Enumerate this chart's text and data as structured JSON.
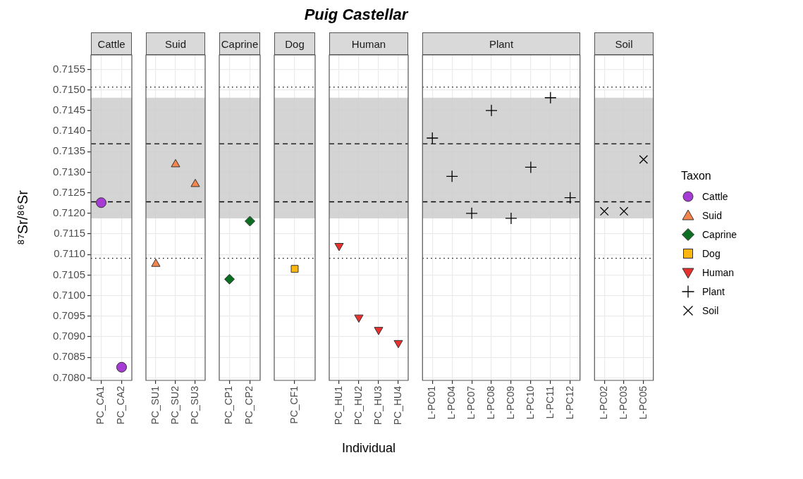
{
  "chart_data": [
    {
      "type": "scatter",
      "title": "Cattle",
      "annotations": [
        "Puig Castellar"
      ],
      "ylabel": "⁸⁷Sr/⁸⁶Sr",
      "categories": [
        "PC_CA1",
        "PC_CA2"
      ],
      "marker": "circle",
      "legend": "right",
      "grid": true,
      "series": [
        {
          "name": "Cattle",
          "color": "#a63bd6",
          "values": [
            0.71226,
            0.70826
          ]
        }
      ],
      "ylim": [
        0.70794,
        0.71585
      ],
      "yticks": [
        {
          "value": 0.708,
          "label": "0.7080"
        },
        0.7085,
        {
          "value": 0.709,
          "label": "0.7090"
        },
        0.7095,
        {
          "value": 0.71,
          "label": "0.7100"
        },
        0.7105,
        {
          "value": 0.711,
          "label": "0.7110"
        },
        0.7115,
        {
          "value": 0.712,
          "label": "0.7120"
        },
        0.7125,
        {
          "value": 0.713,
          "label": "0.7130"
        },
        0.7135,
        {
          "value": 0.714,
          "label": "0.7140"
        },
        0.7145,
        {
          "value": 0.715,
          "label": "0.7150"
        },
        0.7155
      ],
      "ref_lines": [
        {
          "axis": "y",
          "value": 0.71507,
          "line_style": "dotted"
        },
        {
          "axis": "y",
          "value": 0.71369,
          "line_style": "dashed"
        },
        {
          "axis": "y",
          "value": 0.71228,
          "line_style": "dashed"
        },
        {
          "axis": "y",
          "value": 0.71091,
          "line_style": "dotted"
        }
      ],
      "bands": [
        {
          "axis": "y",
          "from": 0.71188,
          "to": 0.71481,
          "color": "#cccccc"
        }
      ]
    },
    {
      "type": "scatter",
      "title": "Suid",
      "categories": [
        "PC_SU1",
        "PC_SU2",
        "PC_SU3"
      ],
      "marker": "triangle",
      "legend": "right",
      "grid": true,
      "tick_labels": "x",
      "series": [
        {
          "name": "Suid",
          "color": "#f5854b",
          "values": [
            0.71077,
            0.71319,
            0.71271
          ]
        }
      ],
      "ylim": [
        0.70794,
        0.71585
      ],
      "yticks": [
        0.708,
        0.7085,
        0.709,
        0.7095,
        0.71,
        0.7105,
        0.711,
        0.7115,
        0.712,
        0.7125,
        0.713,
        0.7135,
        0.714,
        0.7145,
        0.715,
        0.7155
      ],
      "ref_lines": [
        {
          "axis": "y",
          "value": 0.71507,
          "line_style": "dotted"
        },
        {
          "axis": "y",
          "value": 0.71369,
          "line_style": "dashed"
        },
        {
          "axis": "y",
          "value": 0.71228,
          "line_style": "dashed"
        },
        {
          "axis": "y",
          "value": 0.71091,
          "line_style": "dotted"
        }
      ],
      "bands": [
        {
          "axis": "y",
          "from": 0.71188,
          "to": 0.71481,
          "color": "#cccccc"
        }
      ]
    },
    {
      "type": "scatter",
      "title": "Caprine",
      "categories": [
        "PC_CP1",
        "PC_CP2"
      ],
      "marker": "diamond",
      "legend": "right",
      "grid": true,
      "tick_labels": "x",
      "series": [
        {
          "name": "Caprine",
          "color": "#0b6e21",
          "values": [
            0.7104,
            0.71181
          ]
        }
      ],
      "ylim": [
        0.70794,
        0.71585
      ],
      "yticks": [
        0.708,
        0.7085,
        0.709,
        0.7095,
        0.71,
        0.7105,
        0.711,
        0.7115,
        0.712,
        0.7125,
        0.713,
        0.7135,
        0.714,
        0.7145,
        0.715,
        0.7155
      ],
      "ref_lines": [
        {
          "axis": "y",
          "value": 0.71507,
          "line_style": "dotted"
        },
        {
          "axis": "y",
          "value": 0.71369,
          "line_style": "dashed"
        },
        {
          "axis": "y",
          "value": 0.71228,
          "line_style": "dashed"
        },
        {
          "axis": "y",
          "value": 0.71091,
          "line_style": "dotted"
        }
      ],
      "bands": [
        {
          "axis": "y",
          "from": 0.71188,
          "to": 0.71481,
          "color": "#cccccc"
        }
      ]
    },
    {
      "type": "scatter",
      "title": "Dog",
      "categories": [
        "PC_CF1"
      ],
      "marker": "square",
      "legend": "right",
      "grid": true,
      "tick_labels": "x",
      "series": [
        {
          "name": "Dog",
          "color": "#ffb80f",
          "values": [
            0.71065
          ]
        }
      ],
      "ylim": [
        0.70794,
        0.71585
      ],
      "yticks": [
        0.708,
        0.7085,
        0.709,
        0.7095,
        0.71,
        0.7105,
        0.711,
        0.7115,
        0.712,
        0.7125,
        0.713,
        0.7135,
        0.714,
        0.7145,
        0.715,
        0.7155
      ],
      "ref_lines": [
        {
          "axis": "y",
          "value": 0.71507,
          "line_style": "dotted"
        },
        {
          "axis": "y",
          "value": 0.71369,
          "line_style": "dashed"
        },
        {
          "axis": "y",
          "value": 0.71228,
          "line_style": "dashed"
        },
        {
          "axis": "y",
          "value": 0.71091,
          "line_style": "dotted"
        }
      ],
      "bands": [
        {
          "axis": "y",
          "from": 0.71188,
          "to": 0.71481,
          "color": "#cccccc"
        }
      ]
    },
    {
      "type": "scatter",
      "title": "Human",
      "xlabel": "Individual",
      "categories": [
        "PC_HU1",
        "PC_HU2",
        "PC_HU3",
        "PC_HU4"
      ],
      "marker": "triangle-down",
      "legend": "right",
      "grid": true,
      "tick_labels": "x",
      "series": [
        {
          "name": "Human",
          "color": "#e8302e",
          "values": [
            0.71121,
            0.70947,
            0.70917,
            0.70885
          ]
        }
      ],
      "ylim": [
        0.70794,
        0.71585
      ],
      "yticks": [
        0.708,
        0.7085,
        0.709,
        0.7095,
        0.71,
        0.7105,
        0.711,
        0.7115,
        0.712,
        0.7125,
        0.713,
        0.7135,
        0.714,
        0.7145,
        0.715,
        0.7155
      ],
      "ref_lines": [
        {
          "axis": "y",
          "value": 0.71507,
          "line_style": "dotted"
        },
        {
          "axis": "y",
          "value": 0.71369,
          "line_style": "dashed"
        },
        {
          "axis": "y",
          "value": 0.71228,
          "line_style": "dashed"
        },
        {
          "axis": "y",
          "value": 0.71091,
          "line_style": "dotted"
        }
      ],
      "bands": [
        {
          "axis": "y",
          "from": 0.71188,
          "to": 0.71481,
          "color": "#cccccc"
        }
      ]
    },
    {
      "type": "scatter",
      "title": "Plant",
      "categories": [
        "L-PC01",
        "L-PC04",
        "L-PC07",
        "L-PC08",
        "L-PC09",
        "L-PC10",
        "L-PC11",
        "L-PC12"
      ],
      "marker": "cross",
      "legend": "right",
      "grid": true,
      "tick_labels": "x",
      "series": [
        {
          "name": "Plant",
          "color": "#000000",
          "values": [
            0.71383,
            0.7129,
            0.712,
            0.7145,
            0.71188,
            0.71312,
            0.71481,
            0.71238
          ]
        }
      ],
      "ylim": [
        0.70794,
        0.71585
      ],
      "yticks": [
        0.708,
        0.7085,
        0.709,
        0.7095,
        0.71,
        0.7105,
        0.711,
        0.7115,
        0.712,
        0.7125,
        0.713,
        0.7135,
        0.714,
        0.7145,
        0.715,
        0.7155
      ],
      "ref_lines": [
        {
          "axis": "y",
          "value": 0.71507,
          "line_style": "dotted"
        },
        {
          "axis": "y",
          "value": 0.71369,
          "line_style": "dashed"
        },
        {
          "axis": "y",
          "value": 0.71228,
          "line_style": "dashed"
        },
        {
          "axis": "y",
          "value": 0.71091,
          "line_style": "dotted"
        }
      ],
      "bands": [
        {
          "axis": "y",
          "from": 0.71188,
          "to": 0.71481,
          "color": "#cccccc"
        }
      ]
    },
    {
      "type": "scatter",
      "title": "Soil",
      "legend_title": "Taxon",
      "categories": [
        "L-PC02",
        "L-PC03",
        "L-PC05"
      ],
      "marker": "x",
      "legend": "right",
      "grid": true,
      "tick_labels": "x",
      "series": [
        {
          "name": "Soil",
          "color": "#000000",
          "values": [
            0.71205,
            0.71205,
            0.71331
          ]
        }
      ],
      "ylim": [
        0.70794,
        0.71585
      ],
      "yticks": [
        0.708,
        0.7085,
        0.709,
        0.7095,
        0.71,
        0.7105,
        0.711,
        0.7115,
        0.712,
        0.7125,
        0.713,
        0.7135,
        0.714,
        0.7145,
        0.715,
        0.7155
      ],
      "ref_lines": [
        {
          "axis": "y",
          "value": 0.71507,
          "line_style": "dotted"
        },
        {
          "axis": "y",
          "value": 0.71369,
          "line_style": "dashed"
        },
        {
          "axis": "y",
          "value": 0.71228,
          "line_style": "dashed"
        },
        {
          "axis": "y",
          "value": 0.71091,
          "line_style": "dotted"
        }
      ],
      "bands": [
        {
          "axis": "y",
          "from": 0.71188,
          "to": 0.71481,
          "color": "#cccccc"
        }
      ]
    }
  ]
}
